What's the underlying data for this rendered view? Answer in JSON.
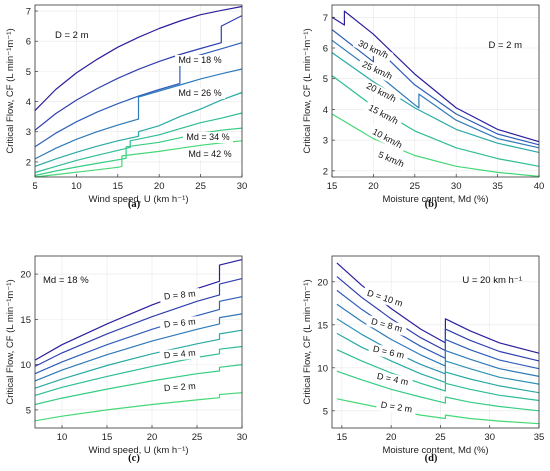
{
  "chart_data": [
    {
      "type": "line",
      "panel": "(a)",
      "xlabel": "Wind speed, U (km h⁻¹)",
      "ylabel": "Critical Flow, CF (L min⁻¹m⁻¹)",
      "xlim": [
        5,
        30
      ],
      "ylim": [
        1.5,
        7.2
      ],
      "xticks": [
        5,
        10,
        15,
        20,
        25,
        30
      ],
      "yticks": [
        2,
        3,
        4,
        5,
        6,
        7
      ],
      "grid": true,
      "annotations": [
        {
          "text": "D = 2 m",
          "pos": "top-left"
        }
      ],
      "labels": [
        "Md = 18 %",
        "Md = 26 %",
        "Md = 34 %",
        "Md = 42 %"
      ],
      "series": [
        {
          "x": [
            5,
            7.5,
            10,
            12.5,
            15,
            17.5,
            20,
            22.5,
            25,
            27.5,
            27.5,
            30
          ],
          "values": [
            3.7,
            4.4,
            4.95,
            5.4,
            5.8,
            6.13,
            6.42,
            6.67,
            6.88,
            7.02,
            7.02,
            7.15
          ]
        },
        {
          "x": [
            5,
            7.5,
            10,
            12.5,
            15,
            17.5,
            20,
            22.5,
            25,
            27.5,
            27.5,
            30
          ],
          "values": [
            3.05,
            3.6,
            4.05,
            4.43,
            4.77,
            5.07,
            5.33,
            5.56,
            5.76,
            5.95,
            6.5,
            6.85
          ]
        },
        {
          "x": [
            5,
            7.5,
            10,
            12.5,
            15,
            17.5,
            20,
            22.5,
            22.5,
            25,
            27.5,
            30
          ],
          "values": [
            2.5,
            2.95,
            3.33,
            3.65,
            3.93,
            4.18,
            4.4,
            4.6,
            5.35,
            5.55,
            5.75,
            5.95
          ]
        },
        {
          "x": [
            5,
            7.5,
            10,
            12.5,
            15,
            17.5,
            17.5,
            20,
            22.5,
            25,
            27.5,
            30
          ],
          "values": [
            2.1,
            2.45,
            2.75,
            3.0,
            3.22,
            3.42,
            4.15,
            4.35,
            4.55,
            4.75,
            4.92,
            5.08
          ]
        },
        {
          "x": [
            5,
            7.5,
            10,
            12.5,
            15,
            17.5,
            17.5,
            20,
            22.5,
            25,
            27.5,
            30
          ],
          "values": [
            1.85,
            2.1,
            2.32,
            2.52,
            2.7,
            2.85,
            3.0,
            3.2,
            3.5,
            3.75,
            4.05,
            4.3
          ]
        },
        {
          "x": [
            5,
            7.5,
            10,
            12.5,
            15,
            16.5,
            16.5,
            20,
            22.5,
            25,
            27.5,
            30
          ],
          "values": [
            1.65,
            1.85,
            2.05,
            2.22,
            2.38,
            2.48,
            2.7,
            2.9,
            3.1,
            3.3,
            3.45,
            3.62
          ]
        },
        {
          "x": [
            5,
            7.5,
            10,
            12.5,
            15,
            16,
            16,
            20,
            22.5,
            25,
            27.5,
            30
          ],
          "values": [
            1.55,
            1.7,
            1.83,
            1.95,
            2.07,
            2.12,
            2.5,
            2.65,
            2.8,
            2.95,
            3.05,
            3.12
          ]
        },
        {
          "x": [
            5,
            7.5,
            10,
            12.5,
            15,
            15.5,
            15.5,
            20,
            22.5,
            25,
            27.5,
            30
          ],
          "values": [
            1.5,
            1.58,
            1.66,
            1.74,
            1.82,
            1.85,
            2.2,
            2.35,
            2.45,
            2.55,
            2.63,
            2.7
          ]
        }
      ]
    },
    {
      "type": "line",
      "panel": "(b)",
      "xlabel": "Moisture content, Md (%)",
      "ylabel": "Critical Flow, CF (L min⁻¹m⁻¹)",
      "xlim": [
        15,
        40
      ],
      "ylim": [
        1.8,
        7.4
      ],
      "xticks": [
        15,
        20,
        25,
        30,
        35,
        40
      ],
      "yticks": [
        2,
        3,
        4,
        5,
        6,
        7
      ],
      "grid": true,
      "annotations": [
        {
          "text": "D = 2 m",
          "pos": "top-right"
        }
      ],
      "labels": [
        "30 km/h",
        "25 km/h",
        "20 km/h",
        "15 km/h",
        "10 km/h",
        "5 km/h"
      ],
      "series": [
        {
          "x": [
            15,
            16.5,
            16.5,
            20,
            25,
            30,
            35,
            40
          ],
          "values": [
            7.0,
            6.75,
            7.2,
            6.45,
            5.15,
            4.05,
            3.35,
            2.95
          ]
        },
        {
          "x": [
            15,
            20,
            20,
            25,
            30,
            35,
            40
          ],
          "values": [
            6.6,
            5.55,
            6.1,
            4.8,
            3.85,
            3.2,
            2.85
          ]
        },
        {
          "x": [
            15,
            20,
            25,
            25.5,
            25.5,
            30,
            35,
            40
          ],
          "values": [
            6.25,
            5.25,
            4.15,
            4.05,
            4.5,
            3.65,
            3.05,
            2.75
          ]
        },
        {
          "x": [
            15,
            20,
            25,
            30,
            35,
            40
          ],
          "values": [
            5.85,
            4.9,
            4.05,
            3.35,
            2.9,
            2.6
          ]
        },
        {
          "x": [
            15,
            20,
            25,
            30,
            35,
            40
          ],
          "values": [
            5.1,
            4.1,
            3.3,
            2.75,
            2.4,
            2.15
          ]
        },
        {
          "x": [
            15,
            20,
            25,
            30,
            35,
            40
          ],
          "values": [
            3.85,
            3.05,
            2.5,
            2.15,
            1.95,
            1.82
          ]
        }
      ]
    },
    {
      "type": "line",
      "panel": "(c)",
      "xlabel": "Wind speed, U (km h⁻¹)",
      "ylabel": "Critical Flow, CF (L min⁻¹m⁻¹)",
      "xlim": [
        7,
        30
      ],
      "ylim": [
        3,
        22
      ],
      "xticks": [
        10,
        15,
        20,
        25,
        30
      ],
      "yticks": [
        5,
        10,
        15,
        20
      ],
      "grid": true,
      "annotations": [
        {
          "text": "Md = 18 %",
          "pos": "top-left"
        }
      ],
      "labels": [
        "D = 8 m",
        "D = 6 m",
        "D = 4 m",
        "D = 2 m"
      ],
      "series": [
        {
          "x": [
            7,
            10,
            15,
            20,
            25,
            27.5,
            27.5,
            30
          ],
          "values": [
            10.5,
            12.2,
            14.5,
            16.6,
            18.4,
            19.2,
            21.0,
            21.6
          ]
        },
        {
          "x": [
            7,
            10,
            15,
            20,
            25,
            27.5,
            27.5,
            30
          ],
          "values": [
            9.8,
            11.3,
            13.4,
            15.3,
            17.0,
            17.7,
            18.9,
            19.5
          ]
        },
        {
          "x": [
            7,
            10,
            15,
            20,
            25,
            27.5,
            27.5,
            30
          ],
          "values": [
            9.0,
            10.3,
            12.2,
            13.9,
            15.4,
            16.1,
            17.0,
            17.5
          ]
        },
        {
          "x": [
            7,
            10,
            15,
            20,
            25,
            27.5,
            27.5,
            30
          ],
          "values": [
            8.2,
            9.4,
            11.1,
            12.6,
            13.9,
            14.5,
            15.2,
            15.6
          ]
        },
        {
          "x": [
            7,
            10,
            15,
            20,
            25,
            27.5,
            27.5,
            30
          ],
          "values": [
            7.4,
            8.4,
            9.9,
            11.2,
            12.3,
            12.8,
            13.4,
            13.8
          ]
        },
        {
          "x": [
            7,
            10,
            15,
            20,
            25,
            27.5,
            27.5,
            30
          ],
          "values": [
            6.6,
            7.5,
            8.7,
            9.8,
            10.8,
            11.2,
            11.7,
            12.0
          ]
        },
        {
          "x": [
            7,
            10,
            15,
            20,
            25,
            27.5,
            27.5,
            30
          ],
          "values": [
            5.6,
            6.3,
            7.3,
            8.2,
            9.0,
            9.3,
            9.7,
            10.0
          ]
        },
        {
          "x": [
            7,
            10,
            15,
            20,
            25,
            27.5,
            27.5,
            30
          ],
          "values": [
            3.8,
            4.3,
            5.0,
            5.6,
            6.1,
            6.35,
            6.7,
            6.9
          ]
        }
      ]
    },
    {
      "type": "line",
      "panel": "(d)",
      "xlabel": "Moisture content, Md (%)",
      "ylabel": "Critical Flow, CF (L min⁻¹m⁻¹)",
      "xlim": [
        14,
        35
      ],
      "ylim": [
        3,
        23
      ],
      "xticks": [
        15,
        20,
        25,
        30,
        35
      ],
      "yticks": [
        5,
        10,
        15,
        20
      ],
      "grid": true,
      "annotations": [
        {
          "text": "U = 20 km h⁻¹",
          "pos": "top-right"
        }
      ],
      "labels": [
        "D = 10 m",
        "D = 8 m",
        "D = 6 m",
        "D = 4 m",
        "D = 2 m"
      ],
      "series": [
        {
          "x": [
            14.5,
            17,
            20,
            23,
            25.5,
            25.5,
            28,
            31,
            35
          ],
          "values": [
            22.2,
            19.6,
            16.9,
            14.5,
            12.9,
            15.7,
            14.3,
            12.9,
            11.7
          ]
        },
        {
          "x": [
            14.5,
            17,
            20,
            23,
            25.5,
            25.5,
            28,
            31,
            35
          ],
          "values": [
            20.6,
            18.2,
            15.7,
            13.5,
            12.0,
            14.5,
            13.2,
            11.9,
            10.8
          ]
        },
        {
          "x": [
            14.5,
            17,
            20,
            23,
            25.5,
            25.5,
            28,
            31,
            35
          ],
          "values": [
            19.0,
            16.8,
            14.5,
            12.5,
            11.1,
            13.3,
            12.1,
            10.9,
            9.9
          ]
        },
        {
          "x": [
            14.5,
            17,
            20,
            23,
            25.5,
            25.5,
            28,
            31,
            35
          ],
          "values": [
            17.4,
            15.4,
            13.3,
            11.5,
            10.2,
            12.0,
            11.0,
            9.9,
            9.0
          ]
        },
        {
          "x": [
            14.5,
            17,
            20,
            23,
            25.5,
            25.5,
            28,
            31,
            35
          ],
          "values": [
            15.7,
            13.9,
            12.0,
            10.4,
            9.3,
            10.8,
            9.9,
            8.9,
            8.1
          ]
        },
        {
          "x": [
            14.5,
            17,
            20,
            23,
            25.5,
            25.5,
            28,
            31,
            35
          ],
          "values": [
            14.0,
            12.4,
            10.8,
            9.3,
            8.3,
            9.5,
            8.7,
            7.9,
            7.1
          ]
        },
        {
          "x": [
            14.5,
            17,
            20,
            23,
            25.5,
            25.5,
            28,
            31,
            35
          ],
          "values": [
            12.1,
            10.8,
            9.4,
            8.2,
            7.3,
            8.2,
            7.5,
            6.8,
            6.2
          ]
        },
        {
          "x": [
            14.5,
            17,
            20,
            23,
            25.5,
            25.5,
            28,
            31,
            35
          ],
          "values": [
            9.6,
            8.6,
            7.5,
            6.6,
            5.9,
            6.6,
            6.0,
            5.5,
            5.0
          ]
        },
        {
          "x": [
            14.5,
            17,
            20,
            23,
            25.5,
            25.5,
            28,
            31,
            35
          ],
          "values": [
            6.4,
            5.8,
            5.1,
            4.5,
            4.1,
            4.5,
            4.1,
            3.8,
            3.5
          ]
        }
      ]
    }
  ],
  "palette": [
    "#2b1f9e",
    "#2e3fae",
    "#2f5eb8",
    "#2f7ab9",
    "#2d93b2",
    "#2aaaa5",
    "#2ebd95",
    "#36cc84",
    "#45d876"
  ]
}
